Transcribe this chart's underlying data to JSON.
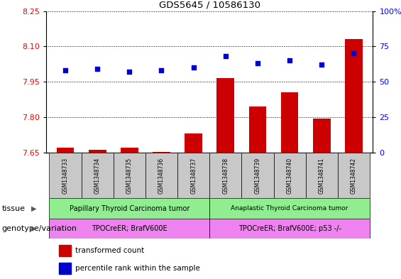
{
  "title": "GDS5645 / 10586130",
  "samples": [
    "GSM1348733",
    "GSM1348734",
    "GSM1348735",
    "GSM1348736",
    "GSM1348737",
    "GSM1348738",
    "GSM1348739",
    "GSM1348740",
    "GSM1348741",
    "GSM1348742"
  ],
  "transformed_count": [
    7.67,
    7.66,
    7.67,
    7.651,
    7.73,
    7.965,
    7.845,
    7.905,
    7.795,
    8.13
  ],
  "percentile_rank": [
    58,
    59,
    57,
    58,
    60,
    68,
    63,
    65,
    62,
    70
  ],
  "ylim_left": [
    7.65,
    8.25
  ],
  "ylim_right": [
    0,
    100
  ],
  "yticks_left": [
    7.65,
    7.8,
    7.95,
    8.1,
    8.25
  ],
  "yticks_right": [
    0,
    25,
    50,
    75,
    100
  ],
  "bar_color": "#cc0000",
  "dot_color": "#0000cc",
  "tissue_groups": [
    {
      "label": "Papillary Thyroid Carcinoma tumor",
      "start": 0,
      "end": 5
    },
    {
      "label": "Anaplastic Thyroid Carcinoma tumor",
      "start": 5,
      "end": 10
    }
  ],
  "tissue_color": "#90ee90",
  "genotype_groups": [
    {
      "label": "TPOCreER; BrafV600E",
      "start": 0,
      "end": 5
    },
    {
      "label": "TPOCreER; BrafV600E; p53 -/-",
      "start": 5,
      "end": 10
    }
  ],
  "genotype_color": "#ee82ee",
  "tissue_label": "tissue",
  "genotype_label": "genotype/variation",
  "legend_items": [
    {
      "color": "#cc0000",
      "label": "transformed count"
    },
    {
      "color": "#0000cc",
      "label": "percentile rank within the sample"
    }
  ],
  "sample_box_color": "#c8c8c8"
}
